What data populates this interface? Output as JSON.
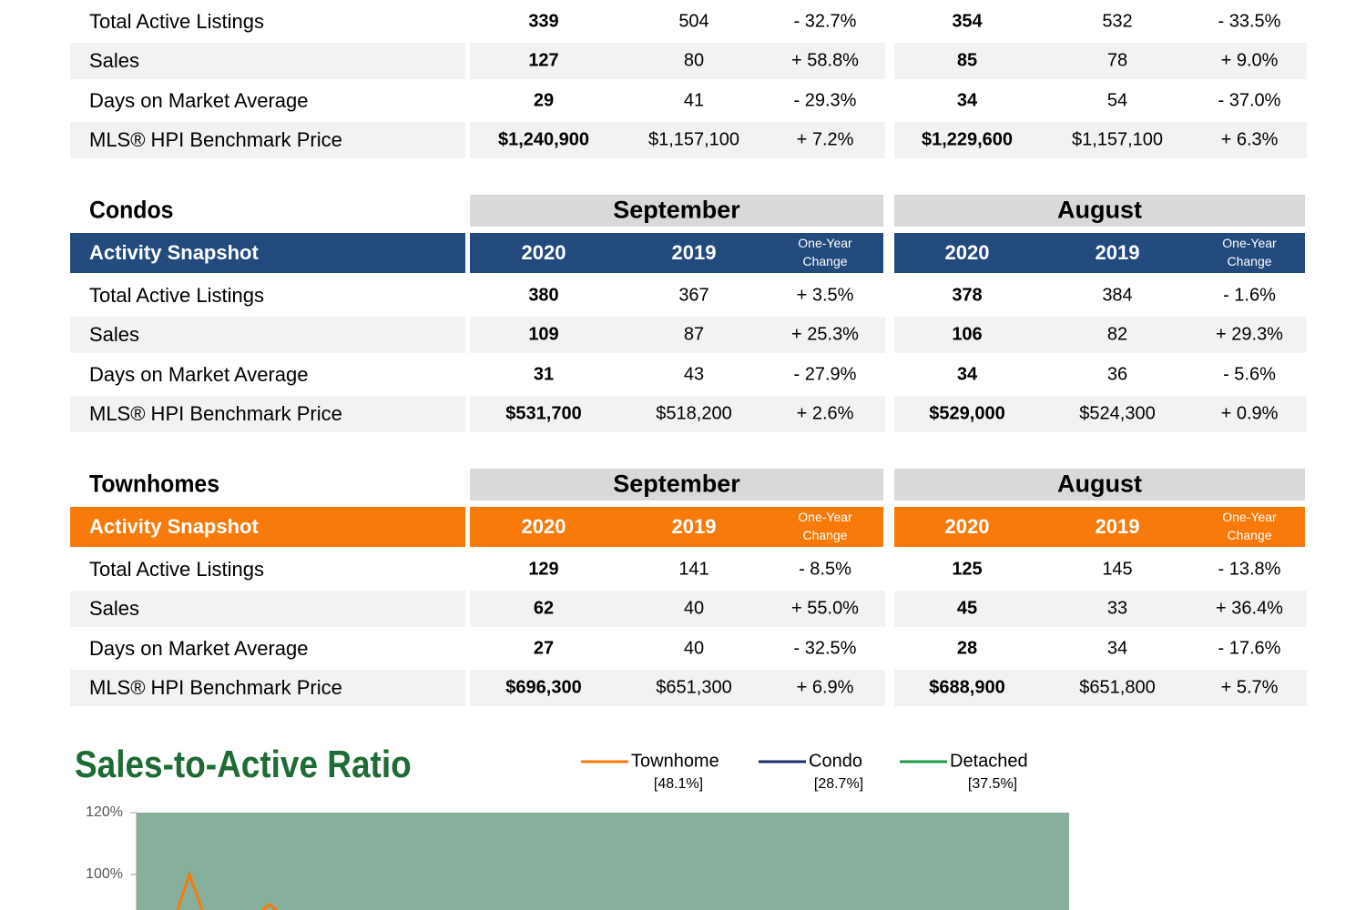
{
  "sections": [
    {
      "rows": [
        {
          "label": "Total Active Listings",
          "cells": [
            "339",
            "504",
            "- 32.7%",
            "354",
            "532",
            "- 33.5%"
          ]
        },
        {
          "label": "Sales",
          "cells": [
            "127",
            "80",
            "+ 58.8%",
            "85",
            "78",
            "+ 9.0%"
          ]
        },
        {
          "label": "Days on Market Average",
          "cells": [
            "29",
            "41",
            "- 29.3%",
            "34",
            "54",
            "- 37.0%"
          ]
        },
        {
          "label": "MLS® HPI Benchmark Price",
          "cells": [
            "$1,240,900",
            "$1,157,100",
            "+ 7.2%",
            "$1,229,600",
            "$1,157,100",
            "+ 6.3%"
          ]
        }
      ]
    },
    {
      "title": "Condos",
      "months": [
        "September",
        "August"
      ],
      "header": {
        "label": "Activity Snapshot",
        "color": "#234a7d",
        "cols": [
          "2020",
          "2019",
          [
            "One-Year",
            "Change"
          ],
          "2020",
          "2019",
          [
            "One-Year",
            "Change"
          ]
        ]
      },
      "rows": [
        {
          "label": "Total Active Listings",
          "cells": [
            "380",
            "367",
            "+ 3.5%",
            "378",
            "384",
            "- 1.6%"
          ]
        },
        {
          "label": "Sales",
          "cells": [
            "109",
            "87",
            "+ 25.3%",
            "106",
            "82",
            "+ 29.3%"
          ]
        },
        {
          "label": "Days on Market Average",
          "cells": [
            "31",
            "43",
            "- 27.9%",
            "34",
            "36",
            "- 5.6%"
          ]
        },
        {
          "label": "MLS® HPI Benchmark Price",
          "cells": [
            "$531,700",
            "$518,200",
            "+ 2.6%",
            "$529,000",
            "$524,300",
            "+ 0.9%"
          ]
        }
      ]
    },
    {
      "title": "Townhomes",
      "months": [
        "September",
        "August"
      ],
      "header": {
        "label": "Activity Snapshot",
        "color": "#f77a0a",
        "cols": [
          "2020",
          "2019",
          [
            "One-Year",
            "Change"
          ],
          "2020",
          "2019",
          [
            "One-Year",
            "Change"
          ]
        ]
      },
      "rows": [
        {
          "label": "Total Active Listings",
          "cells": [
            "129",
            "141",
            "- 8.5%",
            "125",
            "145",
            "- 13.8%"
          ]
        },
        {
          "label": "Sales",
          "cells": [
            "62",
            "40",
            "+ 55.0%",
            "45",
            "33",
            "+ 36.4%"
          ]
        },
        {
          "label": "Days on Market Average",
          "cells": [
            "27",
            "40",
            "- 32.5%",
            "28",
            "34",
            "- 17.6%"
          ]
        },
        {
          "label": "MLS® HPI Benchmark Price",
          "cells": [
            "$696,300",
            "$651,300",
            "+ 6.9%",
            "$688,900",
            "$651,800",
            "+ 5.7%"
          ]
        }
      ]
    }
  ],
  "chart": {
    "title": "Sales-to-Active Ratio",
    "legend": [
      {
        "name": "Townhome",
        "value": "[48.1%]",
        "color": "#f77a0a"
      },
      {
        "name": "Condo",
        "value": "[28.7%]",
        "color": "#1a2f66"
      },
      {
        "name": "Detached",
        "value": "[37.5%]",
        "color": "#1f9a4a"
      }
    ],
    "yticks": [
      {
        "value": 120,
        "label": "120%"
      },
      {
        "value": 100,
        "label": "100%"
      }
    ]
  }
}
